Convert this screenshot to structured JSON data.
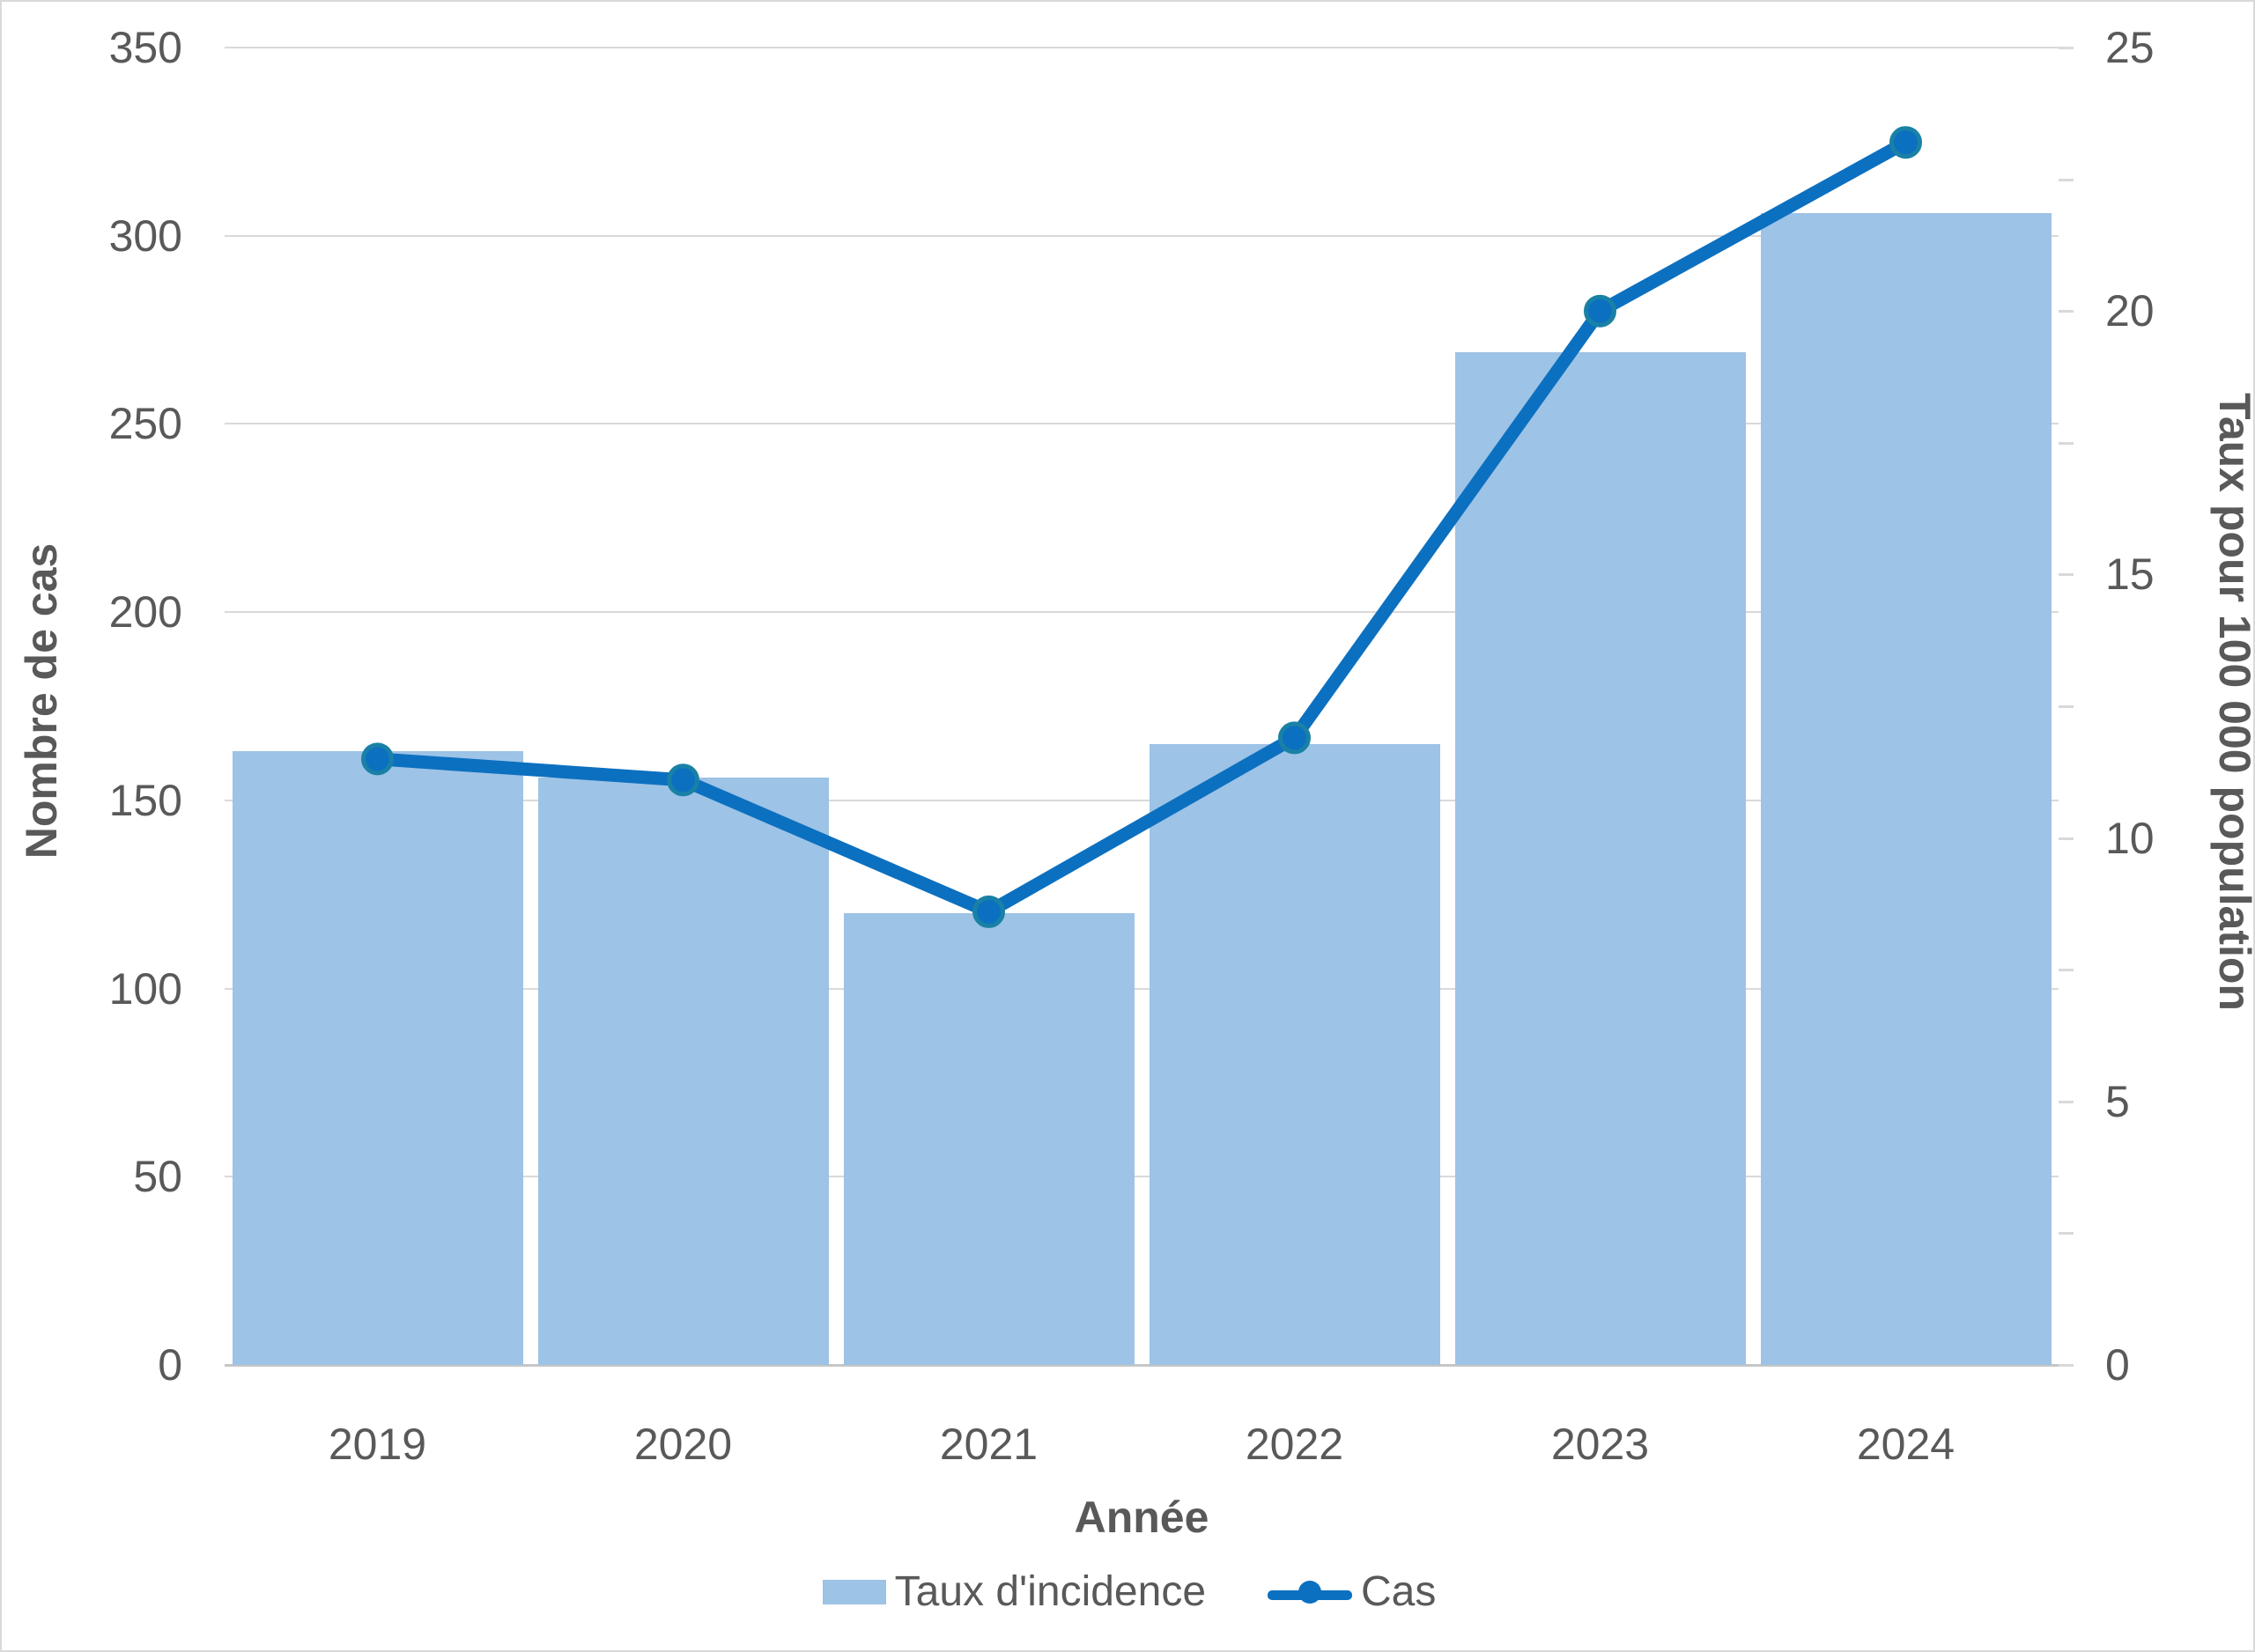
{
  "chart_data": {
    "type": "combo-bar-line",
    "categories": [
      "2019",
      "2020",
      "2021",
      "2022",
      "2023",
      "2024"
    ],
    "series": [
      {
        "name": "Taux d'incidence",
        "type": "bar",
        "axis": "left",
        "values": [
          163,
          156,
          120,
          165,
          269,
          306
        ],
        "color": "#9DC3E6"
      },
      {
        "name": "Cas",
        "type": "line",
        "axis": "right",
        "values": [
          11.5,
          11.1,
          8.6,
          11.9,
          20.0,
          23.2
        ],
        "color": "#0C70C0",
        "marker_stroke": "#1A81A6"
      }
    ],
    "left_axis": {
      "title": "Nombre de cas",
      "min": 0,
      "max": 350,
      "step": 50,
      "ticks": [
        "0",
        "50",
        "100",
        "150",
        "200",
        "250",
        "300",
        "350"
      ]
    },
    "right_axis": {
      "title": "Taux pour 100 000 population",
      "min": 0,
      "max": 25,
      "step": 5,
      "ticks": [
        "0",
        "5",
        "10",
        "15",
        "20",
        "25"
      ],
      "minor_tick_step": 2.5
    },
    "x_axis": {
      "title": "Année"
    },
    "legend": [
      {
        "label": "Taux d'incidence",
        "marker": "swatch"
      },
      {
        "label": "Cas",
        "marker": "line-dot"
      }
    ],
    "grid": true,
    "legend_position": "bottom",
    "colors": {
      "text": "#595959",
      "gridline": "#D9D9D9",
      "axis_line": "#C6C6C6"
    }
  }
}
